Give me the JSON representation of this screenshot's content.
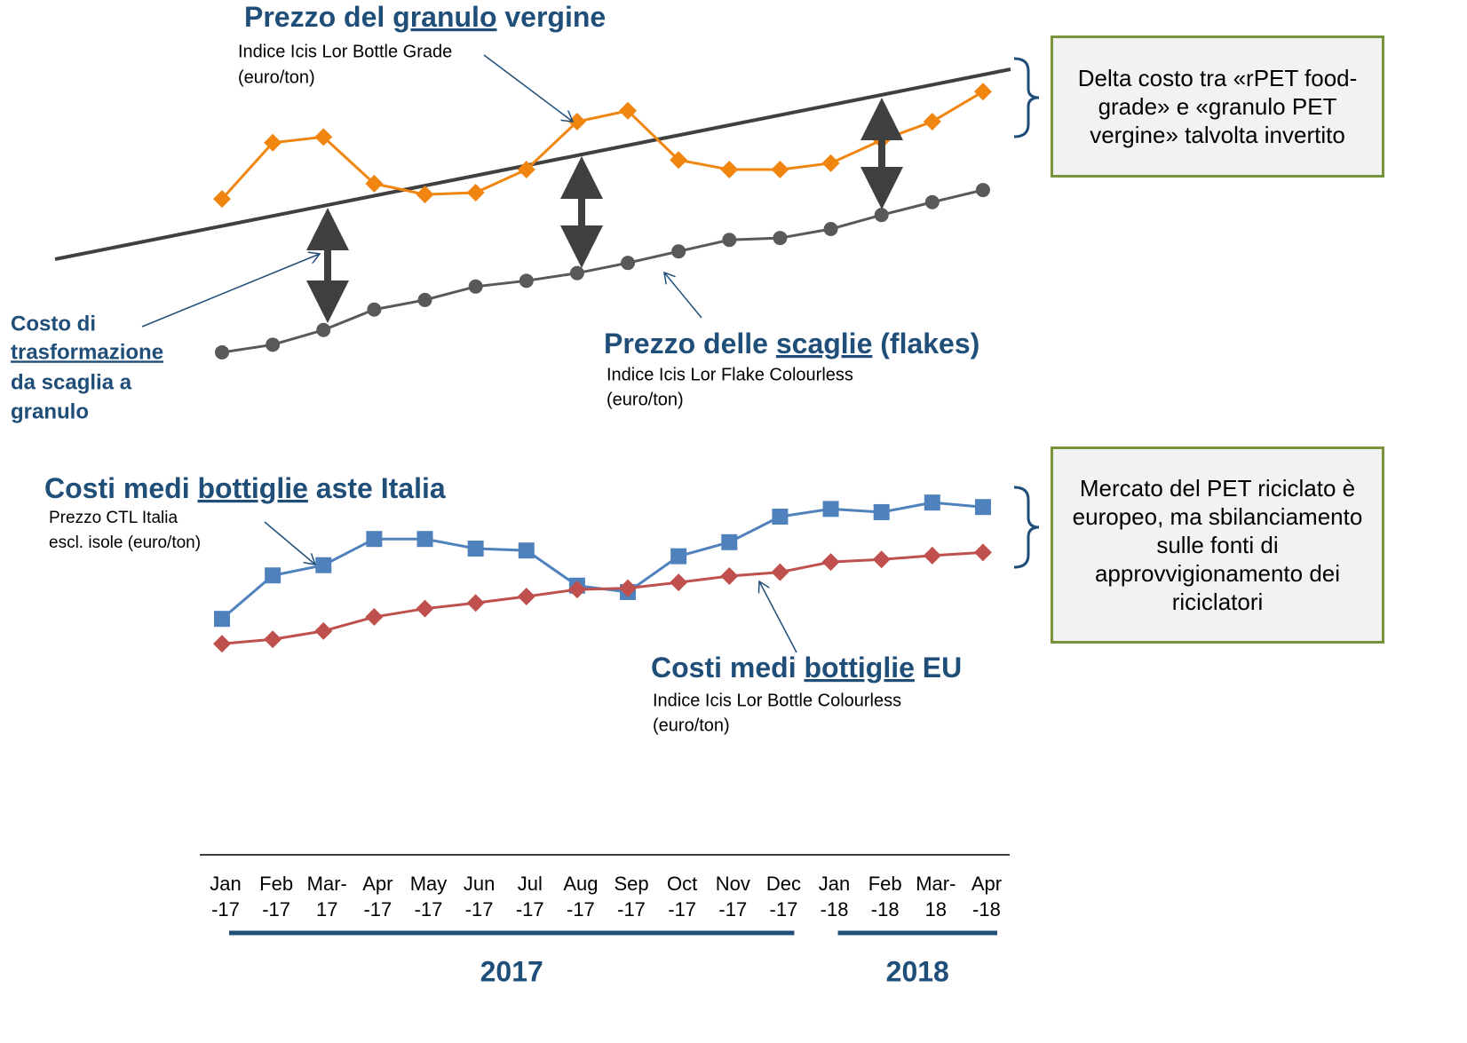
{
  "chart_data": {
    "type": "line",
    "categories": [
      "Jan -17",
      "Feb -17",
      "Mar- 17",
      "Apr -17",
      "May -17",
      "Jun -17",
      "Jul -17",
      "Aug -17",
      "Sep -17",
      "Oct -17",
      "Nov -17",
      "Dec -17",
      "Jan -18",
      "Feb -18",
      "Mar- 18",
      "Apr -18"
    ],
    "years": [
      "2017",
      "2018"
    ],
    "ylim": [
      0,
      100
    ],
    "series": [
      {
        "color": "#f0850f",
        "marker": "diamond",
        "values": [
          77.2,
          86.0,
          86.9,
          79.6,
          77.9,
          78.2,
          81.8,
          89.3,
          91.0,
          83.3,
          81.8,
          81.8,
          82.8,
          86.4,
          89.3,
          94.0
        ]
      },
      {
        "color": "#595959",
        "marker": "circle",
        "values": [
          53.2,
          54.4,
          56.7,
          59.9,
          61.4,
          63.5,
          64.4,
          65.6,
          67.2,
          69.0,
          70.8,
          71.1,
          72.5,
          74.7,
          76.7,
          78.6
        ]
      },
      {
        "color": "#4f81bd",
        "marker": "square",
        "values": [
          11.5,
          18.3,
          19.9,
          24.0,
          24.0,
          22.5,
          22.2,
          16.7,
          15.7,
          21.3,
          23.5,
          27.5,
          28.7,
          28.2,
          29.7,
          29.0
        ]
      },
      {
        "color": "#c0504d",
        "marker": "diamond",
        "values": [
          7.6,
          8.3,
          9.6,
          11.8,
          13.1,
          14.0,
          15.0,
          16.1,
          16.3,
          17.2,
          18.2,
          18.8,
          20.4,
          20.8,
          21.4,
          21.9
        ]
      }
    ],
    "annotations": {
      "virgin": {
        "prefix": "Prezzo del ",
        "underlined": "granulo",
        "suffix": " vergine",
        "subtitle": [
          "Indice Icis Lor Bottle Grade",
          "(euro/ton)"
        ]
      },
      "flakes": {
        "prefix": "Prezzo delle ",
        "underlined": "scaglie",
        "suffix": " (flakes)",
        "subtitle": [
          "Indice Icis Lor Flake Colourless",
          "(euro/ton)"
        ]
      },
      "italy": {
        "prefix": "Costi medi ",
        "underlined": "bottiglie",
        "suffix": " aste Italia",
        "subtitle": [
          "Prezzo CTL Italia",
          "escl. isole (euro/ton)"
        ]
      },
      "eu": {
        "prefix": "Costi medi ",
        "underlined": "bottiglie",
        "suffix": " EU",
        "subtitle": [
          "Indice Icis Lor Bottle Colourless",
          "(euro/ton)"
        ]
      },
      "transformation": [
        "Costo di",
        "trasformazione",
        "da scaglia a",
        "granulo"
      ],
      "box_top": "Delta costo tra «rPET food-grade» e «granulo PET vergine» talvolta invertito",
      "box_bottom": "Mercato del PET riciclato è europeo, ma sbilanciamento sulle fonti di approvvigionamento dei riciclatori"
    }
  }
}
